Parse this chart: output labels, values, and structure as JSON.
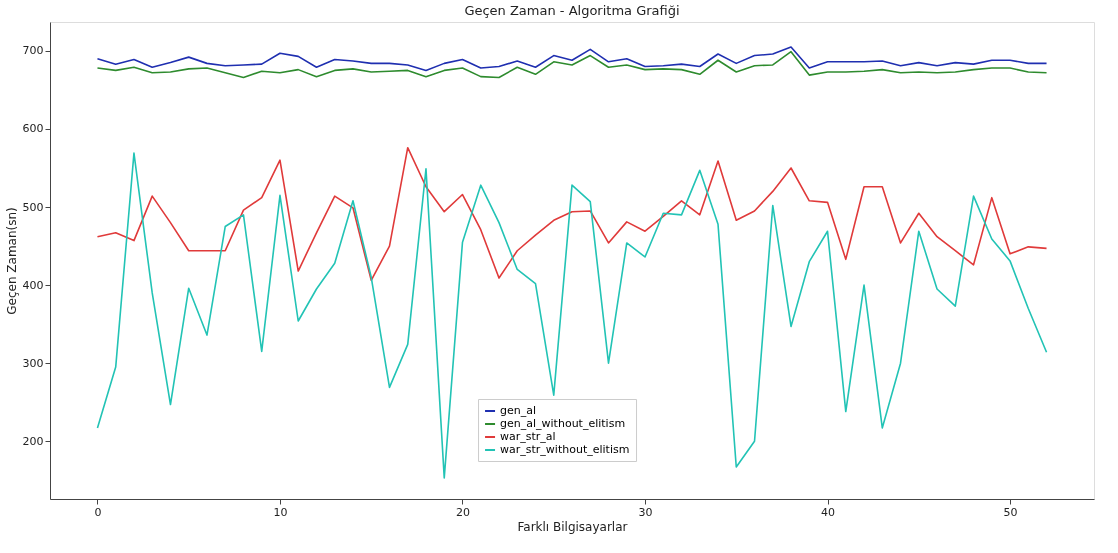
{
  "chart_data": {
    "type": "line",
    "title": "Geçen Zaman - Algoritma Grafiği",
    "xlabel": "Farklı Bilgisayarlar",
    "ylabel": "Geçen Zaman(sn)",
    "x": [
      0,
      1,
      2,
      3,
      4,
      5,
      6,
      7,
      8,
      9,
      10,
      11,
      12,
      13,
      14,
      15,
      16,
      17,
      18,
      19,
      20,
      21,
      22,
      23,
      24,
      25,
      26,
      27,
      28,
      29,
      30,
      31,
      32,
      33,
      34,
      35,
      36,
      37,
      38,
      39,
      40,
      41,
      42,
      43,
      44,
      45,
      46,
      47,
      48,
      49,
      50,
      51,
      52
    ],
    "xlim": [
      -2.6,
      54.6
    ],
    "xticks": [
      0,
      10,
      20,
      30,
      40,
      50
    ],
    "ylim": [
      126,
      737
    ],
    "yticks": [
      200,
      300,
      400,
      500,
      600,
      700
    ],
    "grid": false,
    "legend": "bottom",
    "line_style": "solid",
    "marker": "none",
    "series": [
      {
        "name": "gen_al",
        "color": "#1f2fb0",
        "values": [
          690,
          683,
          689,
          679,
          685,
          692,
          684,
          681,
          682,
          683,
          697,
          693,
          679,
          689,
          687,
          684,
          684,
          682,
          675,
          684,
          689,
          678,
          680,
          687,
          679,
          694,
          688,
          702,
          686,
          690,
          680,
          681,
          683,
          680,
          696,
          684,
          694,
          696,
          705,
          678,
          686,
          686,
          686,
          687,
          681,
          685,
          681,
          685,
          683,
          688,
          688,
          684,
          684
        ]
      },
      {
        "name": "gen_al_without_elitism",
        "color": "#2e8b2e",
        "values": [
          678,
          675,
          679,
          672,
          673,
          677,
          678,
          672,
          666,
          674,
          672,
          676,
          667,
          675,
          677,
          673,
          674,
          675,
          667,
          675,
          678,
          667,
          666,
          679,
          670,
          686,
          682,
          694,
          679,
          682,
          676,
          677,
          676,
          670,
          688,
          673,
          681,
          682,
          699,
          669,
          673,
          673,
          674,
          676,
          672,
          673,
          672,
          673,
          676,
          678,
          678,
          673,
          672
        ]
      },
      {
        "name": "war_str_al",
        "color": "#e03a3a",
        "values": [
          462,
          467,
          457,
          514,
          480,
          444,
          444,
          444,
          496,
          512,
          560,
          418,
          467,
          514,
          499,
          406,
          450,
          576,
          526,
          494,
          516,
          471,
          409,
          444,
          464,
          483,
          494,
          495,
          454,
          481,
          469,
          488,
          508,
          490,
          559,
          483,
          495,
          520,
          550,
          508,
          506,
          433,
          526,
          526,
          454,
          492,
          462,
          444,
          426,
          512,
          440,
          449,
          447
        ]
      },
      {
        "name": "war_str_without_elitism",
        "color": "#22c3b5",
        "values": [
          217,
          295,
          569,
          390,
          247,
          396,
          336,
          475,
          490,
          315,
          515,
          354,
          395,
          428,
          508,
          410,
          269,
          324,
          549,
          153,
          455,
          528,
          480,
          420,
          402,
          259,
          528,
          507,
          300,
          454,
          436,
          492,
          490,
          547,
          478,
          167,
          200,
          502,
          347,
          430,
          469,
          238,
          400,
          217,
          300,
          469,
          395,
          373,
          514,
          459,
          431,
          370,
          314
        ]
      }
    ]
  }
}
